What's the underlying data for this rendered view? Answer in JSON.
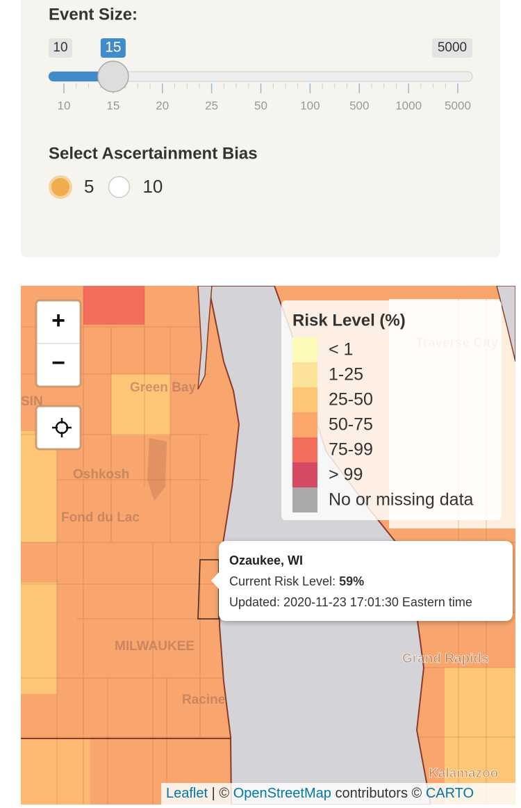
{
  "controls": {
    "event_size": {
      "label": "Event Size:",
      "min": "10",
      "value": "15",
      "max": "5000",
      "ticks": [
        "10",
        "15",
        "20",
        "25",
        "50",
        "100",
        "500",
        "1000",
        "5000"
      ]
    },
    "bias": {
      "label": "Select Ascertainment Bias",
      "options": [
        "5",
        "10"
      ],
      "selected": "5"
    }
  },
  "map": {
    "zoom_in": "+",
    "zoom_out": "−",
    "place_labels": [
      "SIN",
      "Green Bay",
      "Oshkosh",
      "Fond du Lac",
      "MILWAUKEE",
      "Racine",
      "Grand Rapids",
      "Kalamazoo",
      "Traverse City"
    ],
    "legend": {
      "title": "Risk Level (%)",
      "items": [
        {
          "label": "< 1",
          "color": "#fefab8"
        },
        {
          "label": "1-25",
          "color": "#fde29a"
        },
        {
          "label": "25-50",
          "color": "#fdc677"
        },
        {
          "label": "50-75",
          "color": "#fba76c"
        },
        {
          "label": "75-99",
          "color": "#f26d5b"
        },
        {
          "label": "> 99",
          "color": "#d44a63"
        },
        {
          "label": "No or missing data",
          "color": "#a9a9a9"
        }
      ]
    },
    "popup": {
      "title": "Ozaukee, WI",
      "risk_label": "Current Risk Level:",
      "risk_value": "59%",
      "updated": "Updated: 2020-11-23 17:01:30 Eastern time"
    },
    "attribution": [
      "Leaflet",
      "| ©",
      "OpenStreetMap",
      "contributors ©",
      "CARTO"
    ]
  }
}
